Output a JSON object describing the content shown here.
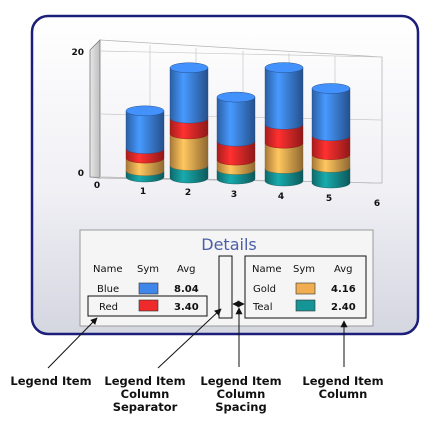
{
  "chart_data": {
    "type": "bar",
    "subtype": "stacked-3d-cylinder",
    "title": "",
    "xlabel": "",
    "ylabel": "",
    "x_ticks": [
      "0",
      "1",
      "2",
      "3",
      "4",
      "5",
      "6"
    ],
    "y_ticks": [
      "0",
      "20"
    ],
    "ylim": [
      0,
      22
    ],
    "categories": [
      "1",
      "2",
      "3",
      "4",
      "5"
    ],
    "series": [
      {
        "name": "Teal",
        "color": "#159596",
        "values": [
          1,
          2,
          1.5,
          2,
          2.5
        ]
      },
      {
        "name": "Gold",
        "color": "#f0ad52",
        "values": [
          2,
          5,
          1.5,
          4,
          2
        ]
      },
      {
        "name": "Red",
        "color": "#ef2a2a",
        "values": [
          1.5,
          2.5,
          3,
          3,
          3
        ]
      },
      {
        "name": "Blue",
        "color": "#3e86e9",
        "values": [
          6,
          8,
          7,
          9,
          7.5
        ]
      }
    ],
    "grid": true
  },
  "legend": {
    "title": "Details",
    "headers": [
      "Name",
      "Sym",
      "Avg"
    ],
    "columns": [
      [
        {
          "name": "Blue",
          "color": "#3e86e9",
          "avg": "8.04"
        },
        {
          "name": "Red",
          "color": "#ef2a2a",
          "avg": "3.40"
        }
      ],
      [
        {
          "name": "Gold",
          "color": "#f0ad52",
          "avg": "4.16"
        },
        {
          "name": "Teal",
          "color": "#159596",
          "avg": "2.40"
        }
      ]
    ]
  },
  "callouts": {
    "legend_item": "Legend Item",
    "column_separator": [
      "Legend Item",
      "Column",
      "Separator"
    ],
    "column_spacing": [
      "Legend Item",
      "Column",
      "Spacing"
    ],
    "legend_column": [
      "Legend Item",
      "Column"
    ]
  }
}
